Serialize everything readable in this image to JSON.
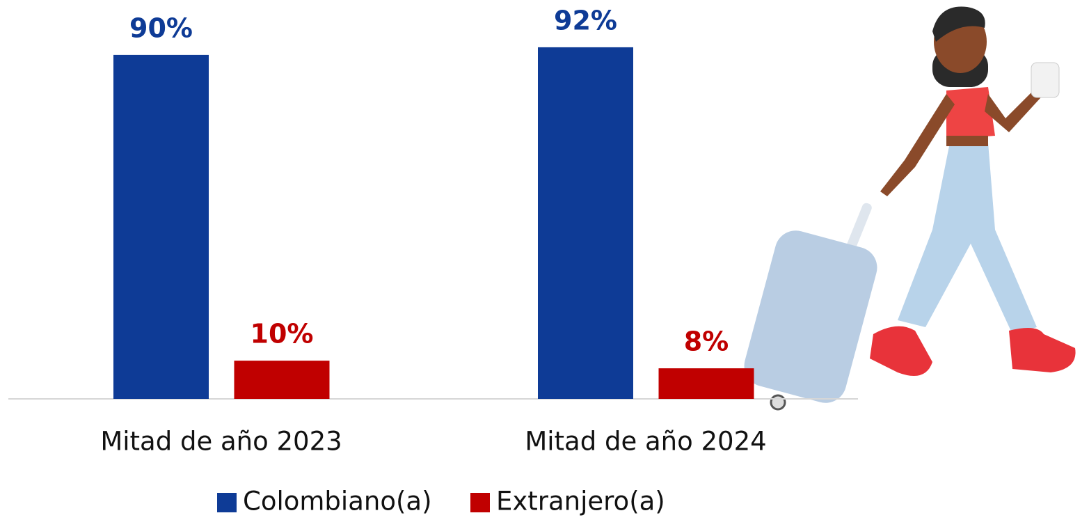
{
  "chart_data": {
    "type": "bar",
    "categories": [
      "Mitad de año 2023",
      "Mitad de año 2024"
    ],
    "series": [
      {
        "name": "Colombiano(a)",
        "color": "#0e3b96",
        "values": [
          90,
          92
        ],
        "value_labels": [
          "90%",
          "92%"
        ]
      },
      {
        "name": "Extranjero(a)",
        "color": "#c00000",
        "values": [
          10,
          8
        ],
        "value_labels": [
          "10%",
          "8%"
        ]
      }
    ]
  }
}
